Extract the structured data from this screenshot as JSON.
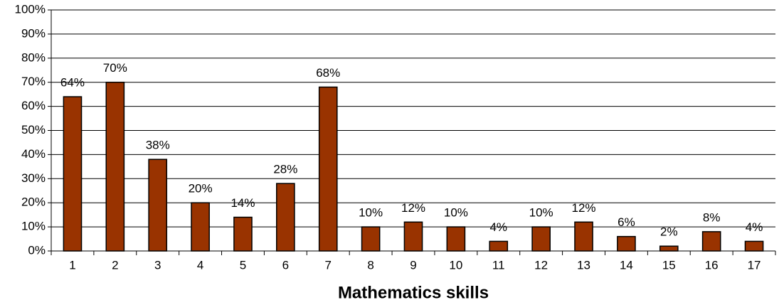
{
  "chart_data": {
    "type": "bar",
    "x_label": "Mathematics skills",
    "categories": [
      "1",
      "2",
      "3",
      "4",
      "5",
      "6",
      "7",
      "8",
      "9",
      "10",
      "11",
      "12",
      "13",
      "14",
      "15",
      "16",
      "17"
    ],
    "values": [
      64,
      70,
      38,
      20,
      14,
      28,
      68,
      10,
      12,
      10,
      4,
      10,
      12,
      6,
      2,
      8,
      4
    ],
    "value_labels": [
      "64%",
      "70%",
      "38%",
      "20%",
      "14%",
      "28%",
      "68%",
      "10%",
      "12%",
      "10%",
      "4%",
      "10%",
      "12%",
      "6%",
      "2%",
      "8%",
      "4%"
    ],
    "color": "#993300",
    "ylim": [
      0,
      100
    ],
    "yticks": [
      {
        "value": 0,
        "label": "0%"
      },
      {
        "value": 10,
        "label": "10%"
      },
      {
        "value": 20,
        "label": "20%"
      },
      {
        "value": 30,
        "label": "30%"
      },
      {
        "value": 40,
        "label": "40%"
      },
      {
        "value": 50,
        "label": "50%"
      },
      {
        "value": 60,
        "label": "60%"
      },
      {
        "value": 70,
        "label": "70%"
      },
      {
        "value": 80,
        "label": "80%"
      },
      {
        "value": 90,
        "label": "90%"
      },
      {
        "value": 100,
        "label": "100%"
      }
    ],
    "grid": true
  }
}
